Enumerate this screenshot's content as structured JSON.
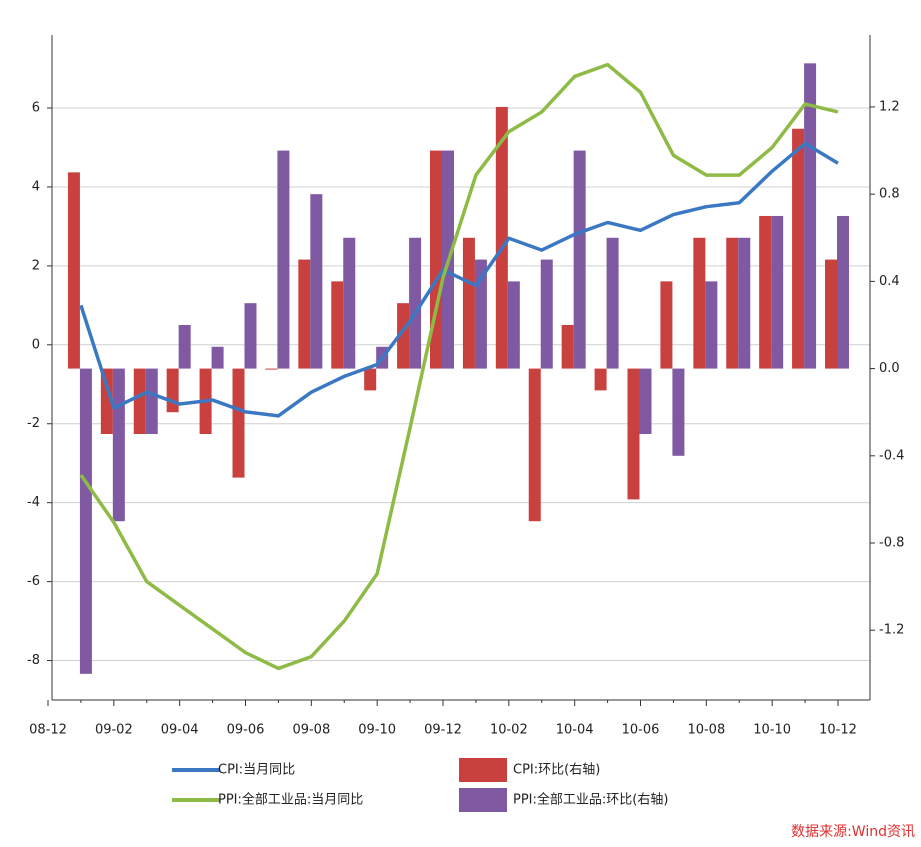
{
  "chart_data": {
    "type": "bar-line",
    "categories": [
      "08-12",
      null,
      "09-02",
      null,
      "09-04",
      null,
      "09-06",
      null,
      "09-08",
      null,
      "09-10",
      null,
      "09-12",
      null,
      "10-02",
      null,
      "10-04",
      null,
      "10-06",
      null,
      "10-08",
      null,
      "10-10",
      null,
      "10-12"
    ],
    "series": [
      {
        "name": "CPI:当月同比",
        "type": "line",
        "color": "#3b78c3",
        "values": [
          null,
          1.0,
          -1.6,
          -1.2,
          -1.5,
          -1.4,
          -1.7,
          -1.8,
          -1.2,
          -0.8,
          -0.5,
          0.6,
          1.9,
          1.5,
          2.7,
          2.4,
          2.8,
          3.1,
          2.9,
          3.3,
          3.5,
          3.6,
          4.4,
          5.1,
          4.6
        ]
      },
      {
        "name": "CPI:环比(右轴)",
        "type": "bar",
        "axis": "y2",
        "color": "#c8413f",
        "values": [
          null,
          0.9,
          -0.3,
          -0.3,
          -0.2,
          -0.3,
          -0.5,
          0.0,
          0.5,
          0.4,
          -0.1,
          0.3,
          1.0,
          0.6,
          1.2,
          -0.7,
          0.2,
          -0.1,
          -0.6,
          0.4,
          0.6,
          0.6,
          0.7,
          1.1,
          0.5
        ]
      },
      {
        "name": "PPI:全部工业品:当月同比",
        "type": "line",
        "color": "#8dbb45",
        "values": [
          null,
          -3.3,
          -4.5,
          -6.0,
          -6.6,
          -7.2,
          -7.8,
          -8.2,
          -7.9,
          -7.0,
          -5.8,
          -2.1,
          1.7,
          4.3,
          5.4,
          5.9,
          6.8,
          7.1,
          6.4,
          4.8,
          4.3,
          4.3,
          5.0,
          6.1,
          5.9
        ]
      },
      {
        "name": "PPI:全部工业品:环比(右轴)",
        "type": "bar",
        "axis": "y2",
        "color": "#7f5aa2",
        "values": [
          null,
          -1.4,
          -0.7,
          -0.3,
          0.2,
          0.1,
          0.3,
          1.0,
          0.8,
          0.6,
          0.1,
          0.6,
          1.0,
          0.5,
          0.4,
          0.5,
          1.0,
          0.6,
          -0.3,
          -0.4,
          0.4,
          0.6,
          0.7,
          1.4,
          0.7
        ]
      }
    ],
    "ylim": [
      -9,
      7.85
    ],
    "yticks": [
      -8,
      -6,
      -4,
      -2,
      0,
      2,
      4,
      6
    ],
    "y2lim": [
      -1.52,
      1.53
    ],
    "y2ticks": [
      -1.2,
      -0.8,
      -0.4,
      {
        "value": 0,
        "label": "0.0"
      },
      0.4,
      0.8,
      1.2
    ],
    "grid": true,
    "legend": "bottom",
    "source": "数据来源:Wind资讯"
  }
}
